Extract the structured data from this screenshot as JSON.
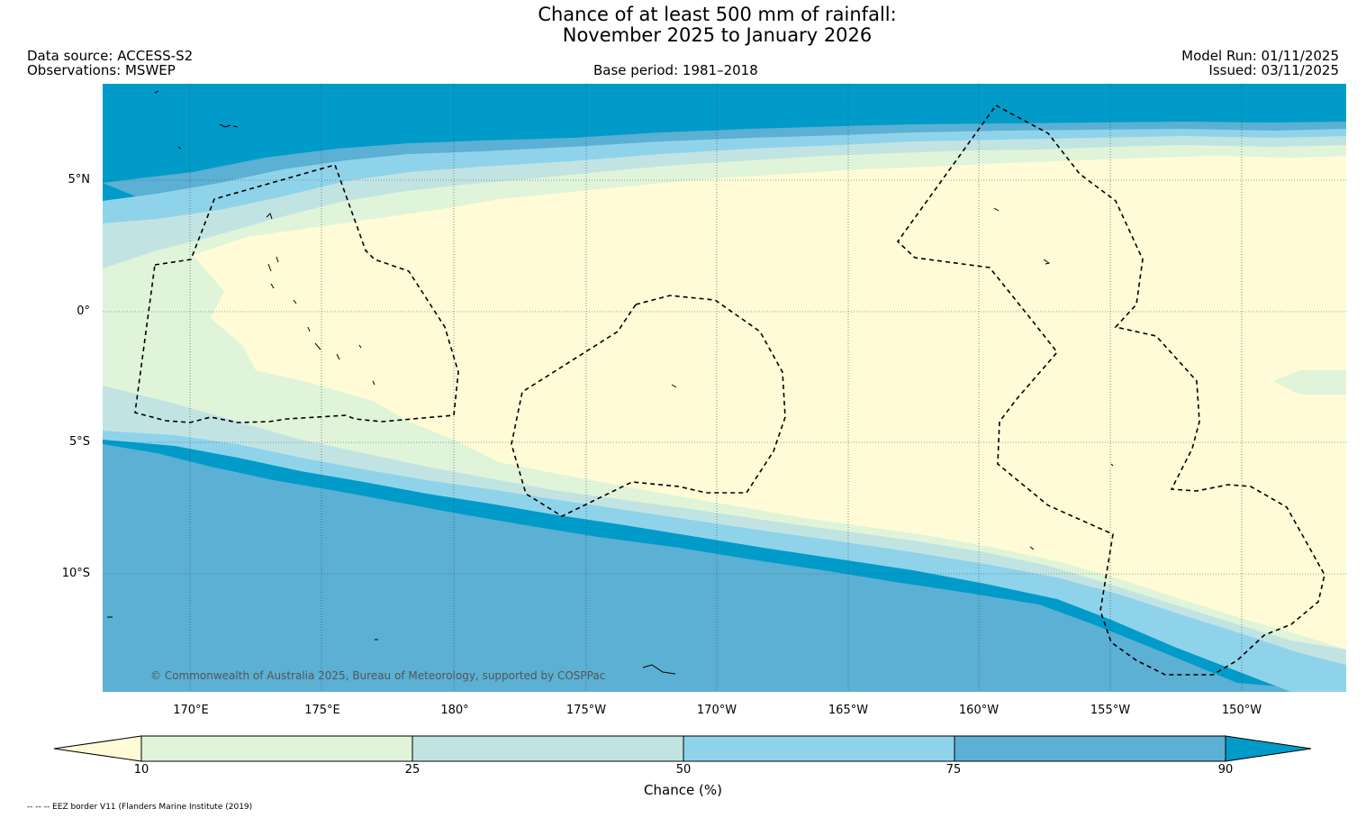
{
  "title": {
    "line1": "Chance of at least 500 mm of rainfall:",
    "line2": "November 2025 to January 2026"
  },
  "header": {
    "data_source": "Data source: ACCESS-S2",
    "observations": "Observations: MSWEP",
    "base_period": "Base period: 1981–2018",
    "model_run": "Model Run: 01/11/2025",
    "issued": "Issued: 03/11/2025"
  },
  "map": {
    "lat_ticks": [
      "5°N",
      "0°",
      "5°S",
      "10°S"
    ],
    "lon_ticks": [
      "170°E",
      "175°E",
      "180°",
      "175°W",
      "170°W",
      "165°W",
      "160°W",
      "155°W",
      "150°W"
    ],
    "credit": "© Commonwealth of Australia 2025, Bureau of Meteorology, supported by COSPPac"
  },
  "colorbar": {
    "ticks": [
      "10",
      "25",
      "50",
      "75",
      "90"
    ],
    "label": "Chance (%)",
    "colors": {
      "below_10": "#fefbd6",
      "10_25": "#dff4d9",
      "25_50": "#c1e4e3",
      "50_75": "#8fd3ea",
      "75_90": "#5bb0d4",
      "above_90": "#009bc9"
    }
  },
  "footnote": "-- -- -- EEZ border V11 (Flanders Marine Institute (2019)"
}
